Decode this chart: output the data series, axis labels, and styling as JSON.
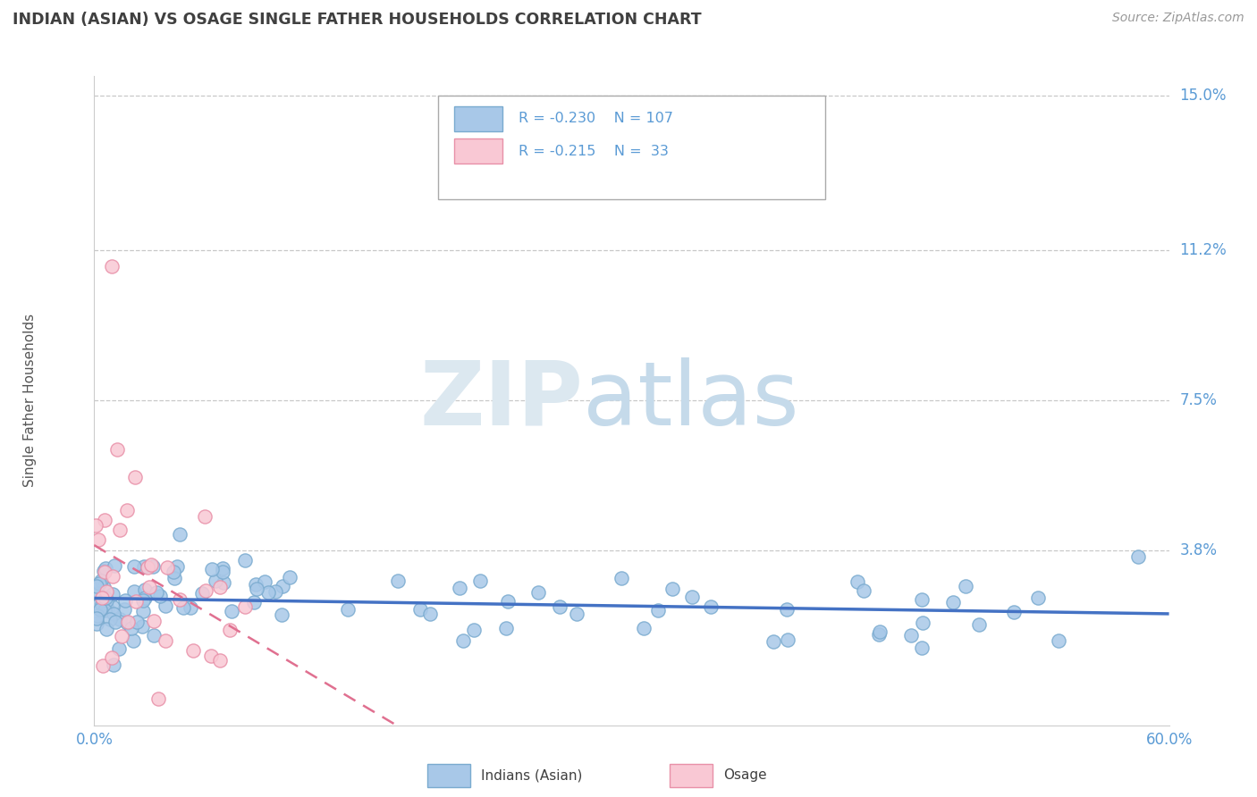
{
  "title": "INDIAN (ASIAN) VS OSAGE SINGLE FATHER HOUSEHOLDS CORRELATION CHART",
  "source": "Source: ZipAtlas.com",
  "ylabel": "Single Father Households",
  "xlim": [
    0.0,
    0.6
  ],
  "ylim": [
    -0.005,
    0.155
  ],
  "yticks": [
    0.038,
    0.075,
    0.112,
    0.15
  ],
  "ytick_labels": [
    "3.8%",
    "7.5%",
    "11.2%",
    "15.0%"
  ],
  "series1_name": "Indians (Asian)",
  "series1_color": "#a8c8e8",
  "series1_edge_color": "#7aabcf",
  "series1_line_color": "#4472c4",
  "series1_R": -0.23,
  "series1_N": 107,
  "series2_name": "Osage",
  "series2_color": "#f9c8d4",
  "series2_edge_color": "#e890a8",
  "series2_line_color": "#e07090",
  "series2_R": -0.215,
  "series2_N": 33,
  "background_color": "#ffffff",
  "grid_color": "#c8c8c8",
  "title_color": "#404040",
  "axis_label_color": "#5b9bd5",
  "legend_text_color": "#5b9bd5",
  "watermark_zip_color": "#dce8f0",
  "watermark_atlas_color": "#c5daea"
}
